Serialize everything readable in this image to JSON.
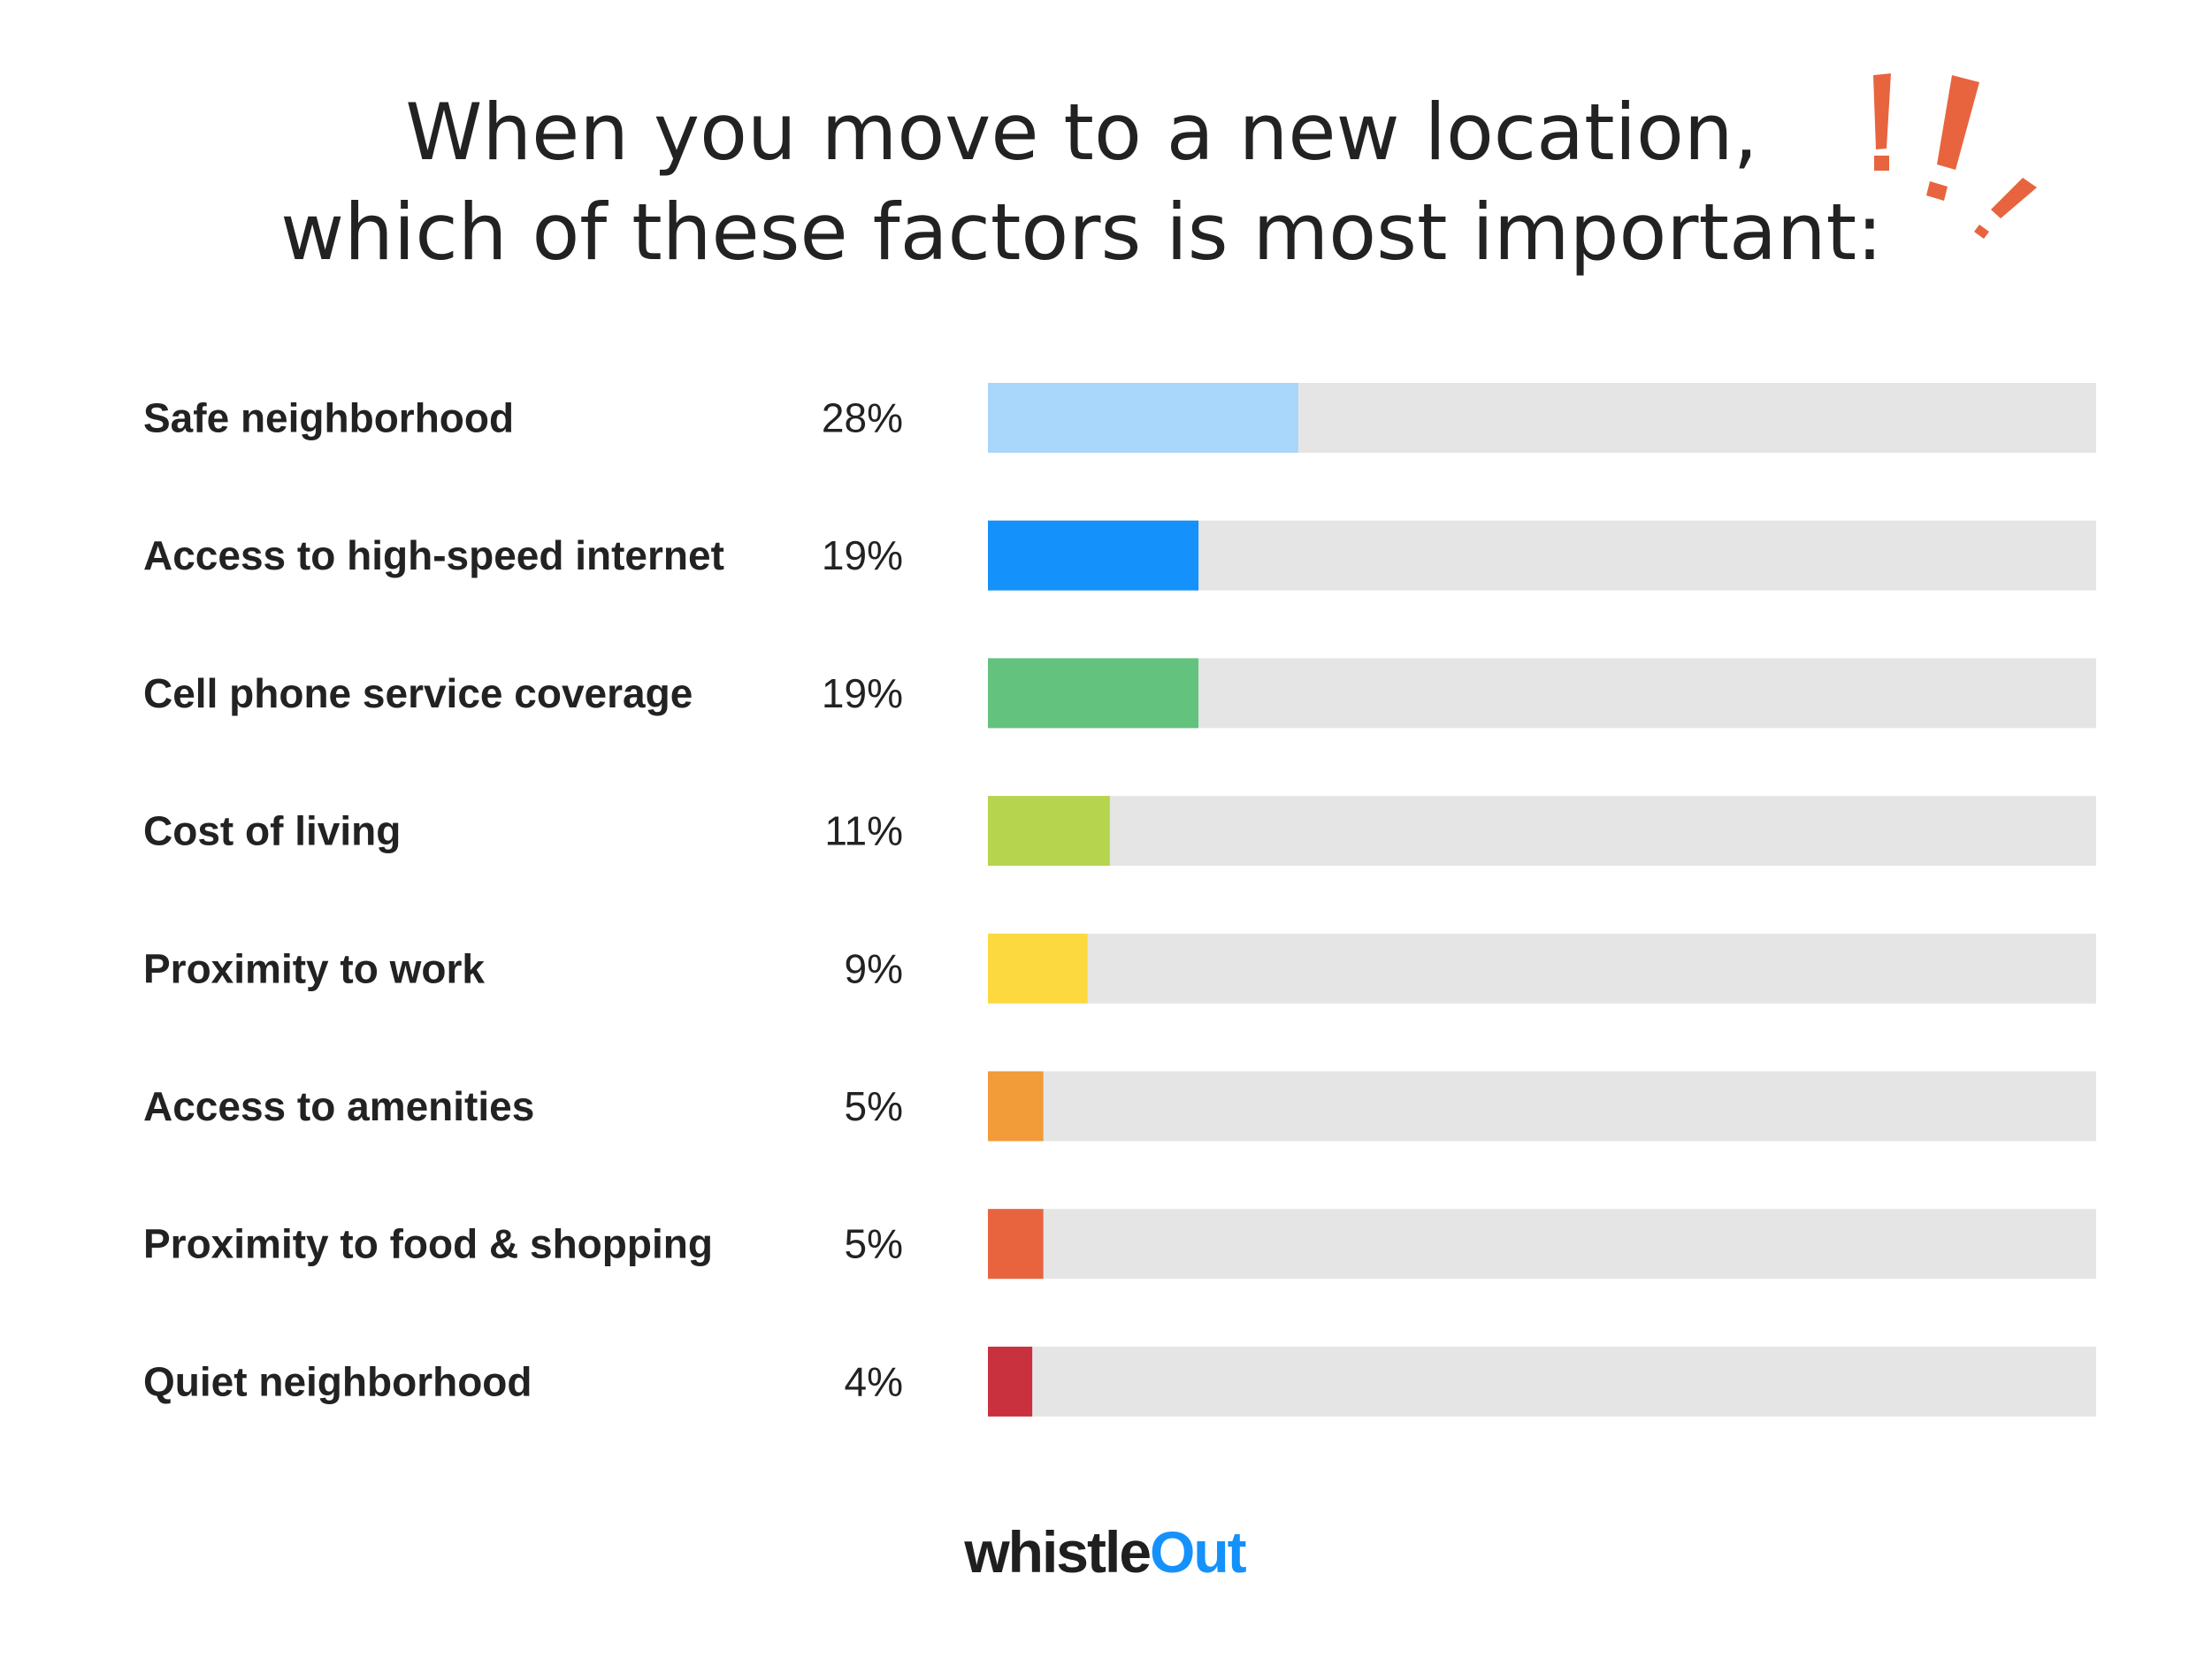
{
  "chart_data": {
    "type": "bar",
    "orientation": "horizontal",
    "title": "When you move to a new location, which of these factors is most important:",
    "title_lines": [
      "When you move to a new location,",
      "which of these factors is most important:"
    ],
    "categories": [
      "Safe neighborhood",
      "Access to high-speed internet",
      "Cell phone service coverage",
      "Cost of living",
      "Proximity to work",
      "Access to amenities",
      "Proximity to food & shopping",
      "Quiet neighborhood"
    ],
    "values": [
      28,
      19,
      19,
      11,
      9,
      5,
      5,
      4
    ],
    "value_labels": [
      "28%",
      "19%",
      "19%",
      "11%",
      "9%",
      "5%",
      "5%",
      "4%"
    ],
    "unit": "%",
    "xlim": [
      0,
      100
    ],
    "grid": false,
    "legend": "none",
    "colors": [
      "#a9d6fb",
      "#1591fb",
      "#63c27e",
      "#b6d44d",
      "#fdd940",
      "#f29b39",
      "#e8643f",
      "#c9313f"
    ],
    "track_color": "#e5e5e5"
  },
  "decoration": {
    "accent_color": "#e8643f",
    "icon": "exclamation-marks-icon"
  },
  "brand": {
    "part1": "whistle",
    "part2": "Out",
    "color1": "#1f1f1f",
    "color2": "#1591fb"
  }
}
